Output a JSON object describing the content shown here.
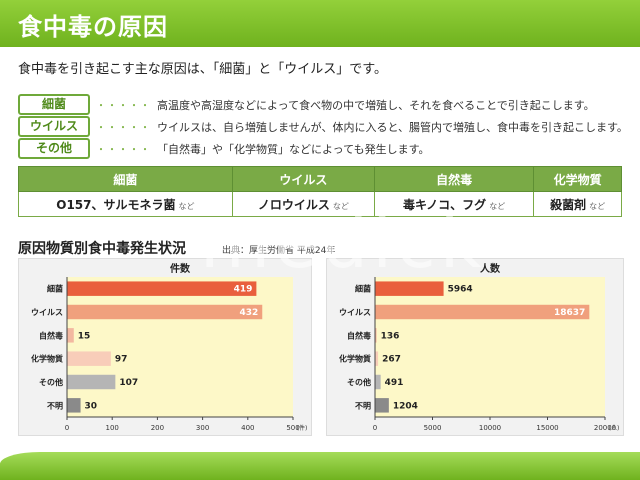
{
  "title": "食中毒の原因",
  "intro": "食中毒を引き起こす主な原因は、「細菌」と「ウイルス」です。",
  "categories": [
    {
      "label": "細菌",
      "dots": "・・・・・",
      "desc": "高温度や高湿度などによって食べ物の中で増殖し、それを食べることで引き起こします。"
    },
    {
      "label": "ウイルス",
      "dots": "・・・・・",
      "desc": "ウイルスは、自ら増殖しませんが、体内に入ると、腸管内で増殖し、食中毒を引き起こします。"
    },
    {
      "label": "その他",
      "dots": "・・・・・",
      "desc": "「自然毒」や「化学物質」などによっても発生します。"
    }
  ],
  "examples_table": {
    "headers": [
      "細菌",
      "ウイルス",
      "自然毒",
      "化学物質"
    ],
    "cells": [
      "O157、サルモネラ菌",
      "ノロウイルス",
      "毒キノコ、フグ",
      "殺菌剤"
    ],
    "suffix": "など"
  },
  "chart_heading": "原因物質別食中毒発生状況",
  "source": "出典：厚生労働省  平成24年",
  "watermark": "medick",
  "colors": {
    "accent": "#7aaa46",
    "plot_bg": "#fdf8c8"
  },
  "chart_data": [
    {
      "type": "bar",
      "orientation": "horizontal",
      "title": "件数",
      "categories": [
        "細菌",
        "ウイルス",
        "自然毒",
        "化学物質",
        "その他",
        "不明"
      ],
      "values": [
        419,
        432,
        15,
        97,
        107,
        30
      ],
      "colors": [
        "#e95f3d",
        "#f0a07d",
        "#f3b8a0",
        "#f8cdb9",
        "#b5b5b5",
        "#8a8a8a"
      ],
      "xlim": [
        0,
        500
      ],
      "ticks": [
        0,
        100,
        200,
        300,
        400,
        500
      ],
      "unit": "(件)"
    },
    {
      "type": "bar",
      "orientation": "horizontal",
      "title": "人数",
      "categories": [
        "細菌",
        "ウイルス",
        "自然毒",
        "化学物質",
        "その他",
        "不明"
      ],
      "values": [
        5964,
        18637,
        136,
        267,
        491,
        1204
      ],
      "colors": [
        "#e95f3d",
        "#f0a07d",
        "#f3b8a0",
        "#f8cdb9",
        "#b5b5b5",
        "#8a8a8a"
      ],
      "xlim": [
        0,
        20000
      ],
      "ticks": [
        0,
        5000,
        10000,
        15000,
        20000
      ],
      "unit": "(人)"
    }
  ]
}
